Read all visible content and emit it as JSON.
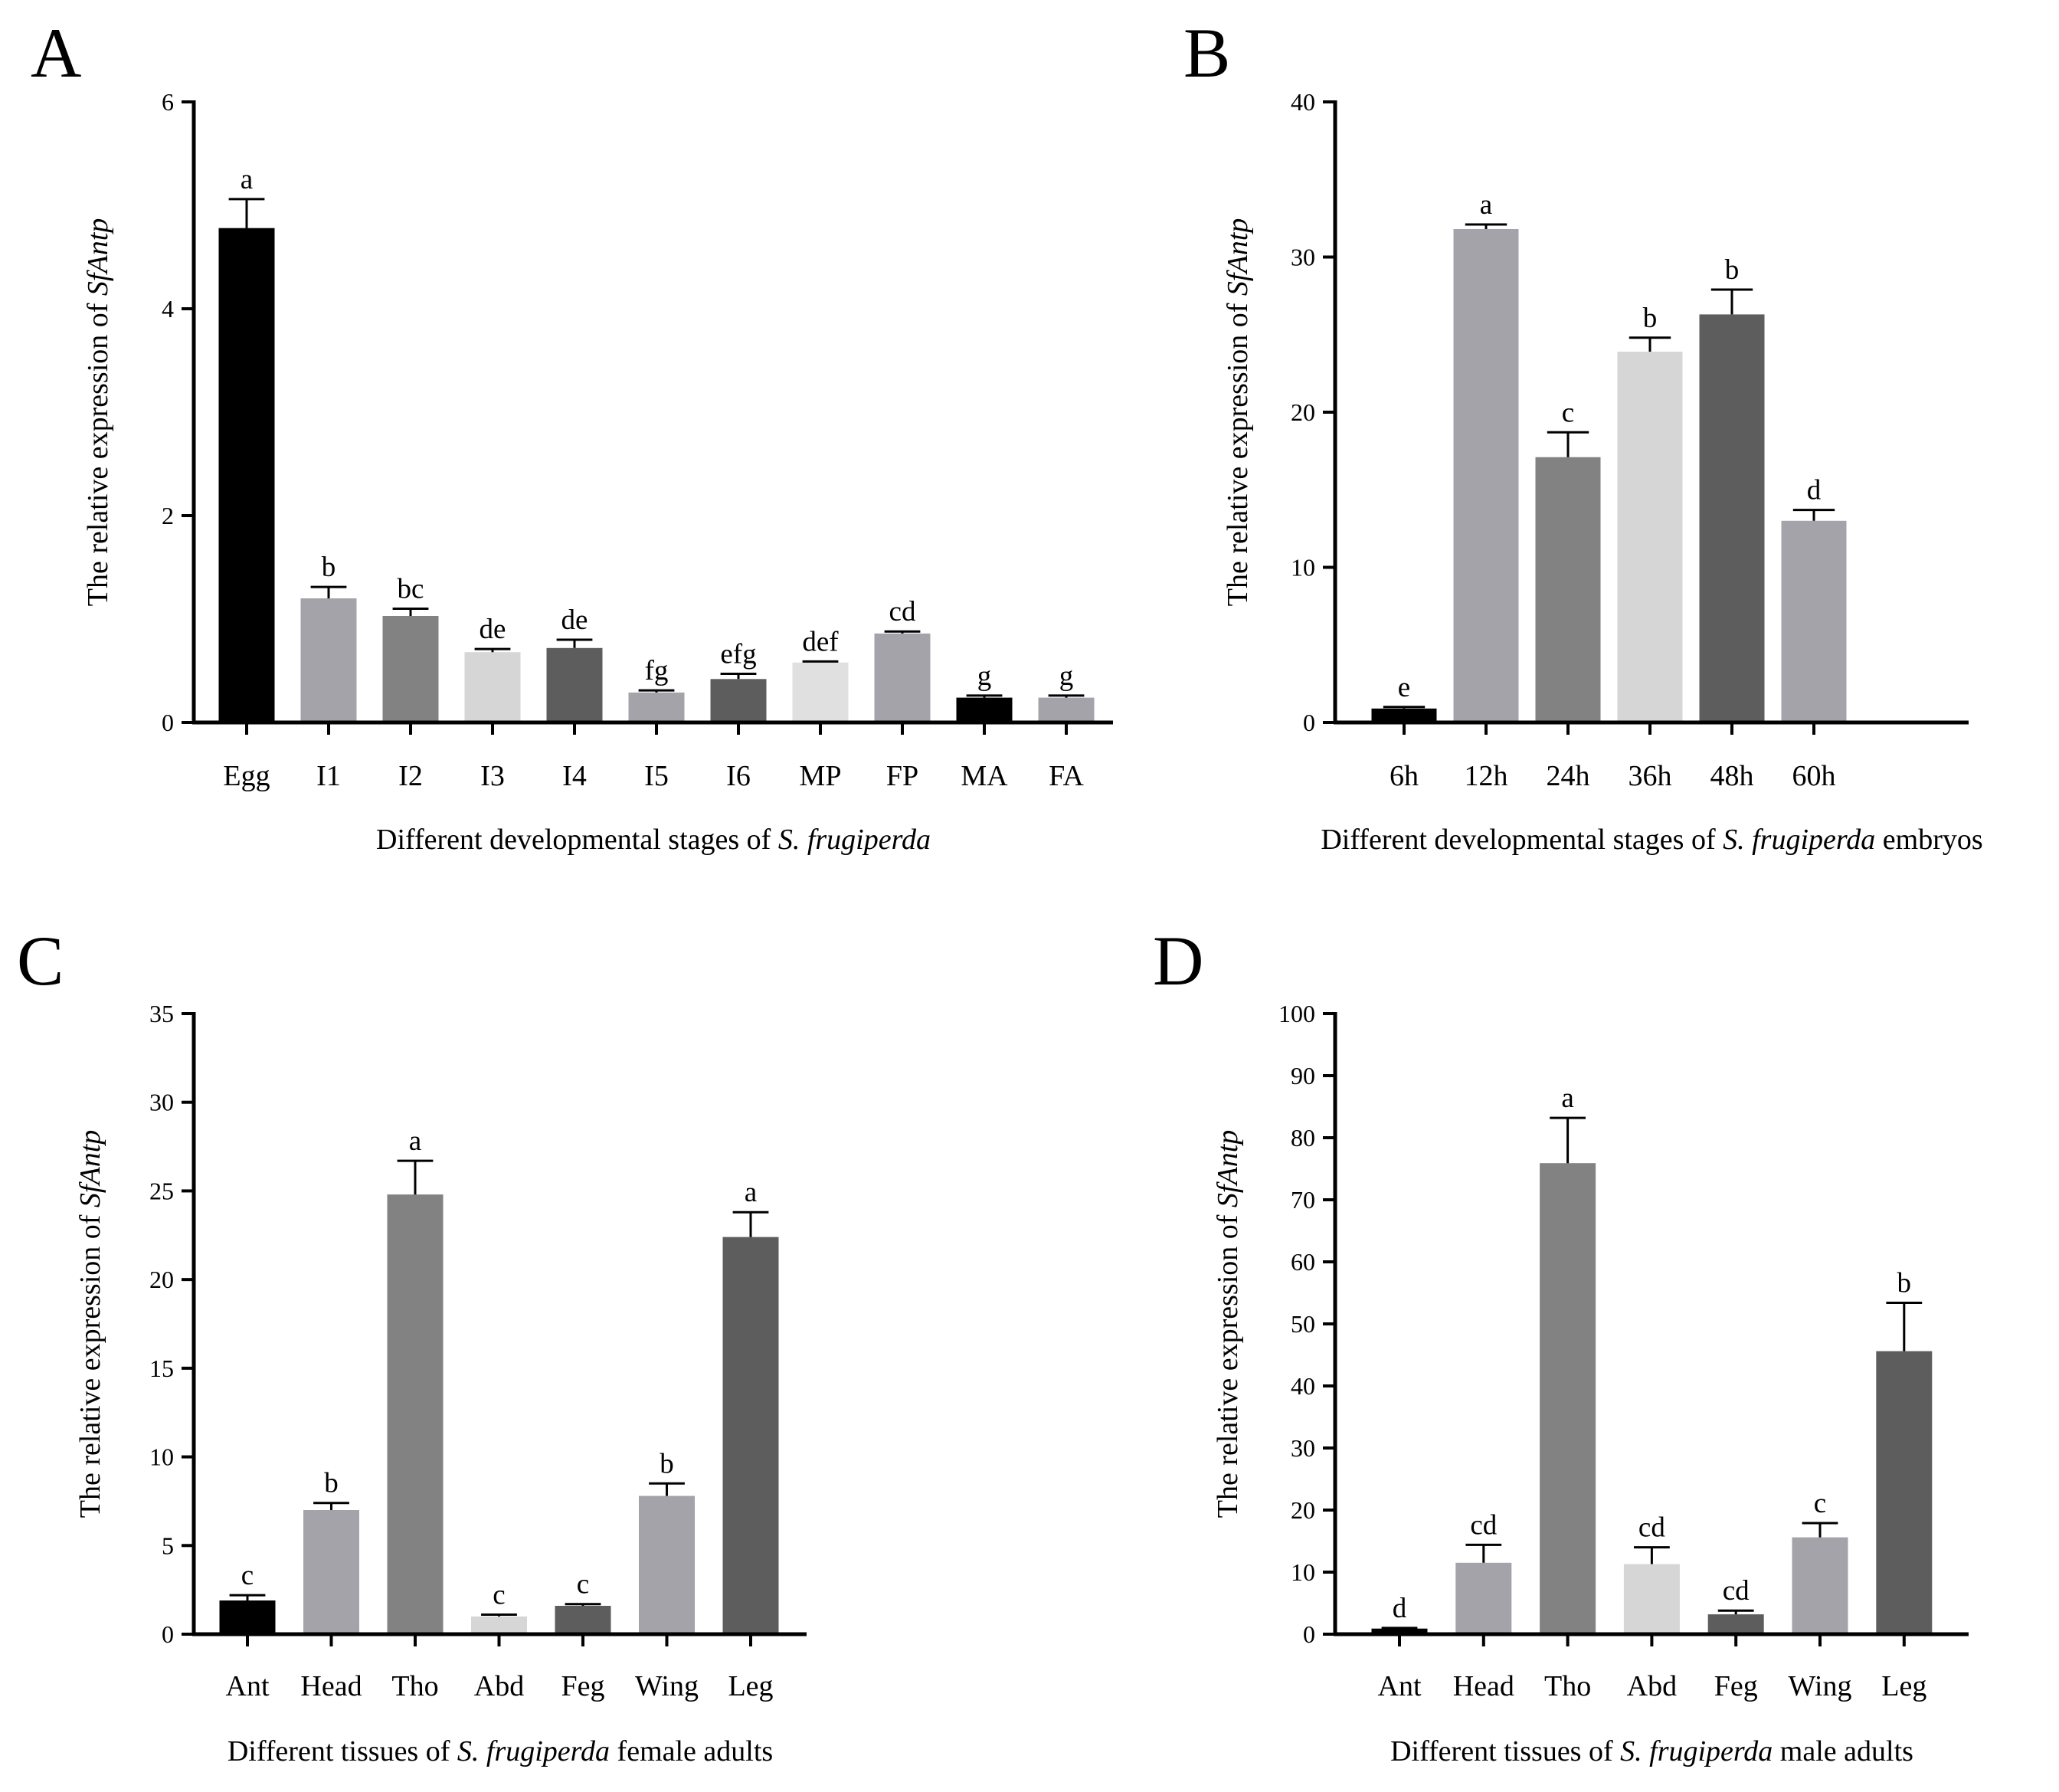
{
  "chart_data": [
    {
      "id": "A",
      "type": "bar",
      "panel_label": "A",
      "categories": [
        "Egg",
        "I1",
        "I2",
        "I3",
        "I4",
        "I5",
        "I6",
        "MP",
        "FP",
        "MA",
        "FA"
      ],
      "values": [
        4.78,
        1.2,
        1.03,
        0.68,
        0.72,
        0.29,
        0.42,
        0.58,
        0.86,
        0.24,
        0.24
      ],
      "errors": [
        0.28,
        0.11,
        0.07,
        0.03,
        0.08,
        0.02,
        0.05,
        0.01,
        0.02,
        0.02,
        0.02
      ],
      "significance": [
        "a",
        "b",
        "bc",
        "de",
        "de",
        "fg",
        "efg",
        "def",
        "cd",
        "g",
        "g"
      ],
      "colors": [
        "#000000",
        "#a4a3a9",
        "#828282",
        "#d6d6d6",
        "#5d5d5d",
        "#a4a3a9",
        "#5d5d5d",
        "#e0e0e0",
        "#a4a3a9",
        "#000000",
        "#a4a3a9"
      ],
      "ylim": [
        0,
        6
      ],
      "yticks": [
        0,
        2,
        4,
        6
      ],
      "ylabel": {
        "prefix": "The relative expression of ",
        "gene": "SfAntp"
      },
      "xlabel": {
        "prefix": "Different developmental stages of ",
        "species": "S. frugiperda",
        "suffix": ""
      }
    },
    {
      "id": "B",
      "type": "bar",
      "panel_label": "B",
      "categories": [
        "6h",
        "12h",
        "24h",
        "36h",
        "48h",
        "60h"
      ],
      "values": [
        0.9,
        31.8,
        17.1,
        23.9,
        26.3,
        13.0
      ],
      "errors": [
        0.1,
        0.3,
        1.6,
        0.9,
        1.6,
        0.7
      ],
      "significance": [
        "e",
        "a",
        "c",
        "b",
        "b",
        "d"
      ],
      "colors": [
        "#000000",
        "#a4a3a9",
        "#828282",
        "#d6d6d6",
        "#5d5d5d",
        "#a4a3a9"
      ],
      "ylim": [
        0,
        40
      ],
      "yticks": [
        0,
        10,
        20,
        30,
        40
      ],
      "ylabel": {
        "prefix": "The relative expression of ",
        "gene": "SfAntp"
      },
      "xlabel": {
        "prefix": "Different developmental stages of ",
        "species": "S. frugiperda",
        "suffix": " embryos"
      }
    },
    {
      "id": "C",
      "type": "bar",
      "panel_label": "C",
      "categories": [
        "Ant",
        "Head",
        "Tho",
        "Abd",
        "Feg",
        "Wing",
        "Leg"
      ],
      "values": [
        1.9,
        7.0,
        24.8,
        1.0,
        1.6,
        7.8,
        22.4
      ],
      "errors": [
        0.3,
        0.4,
        1.9,
        0.1,
        0.1,
        0.7,
        1.4
      ],
      "significance": [
        "c",
        "b",
        "a",
        "c",
        "c",
        "b",
        "a"
      ],
      "colors": [
        "#000000",
        "#a4a3a9",
        "#828282",
        "#d6d6d6",
        "#5d5d5d",
        "#a4a3a9",
        "#5d5d5d"
      ],
      "ylim": [
        0,
        35
      ],
      "yticks": [
        0,
        5,
        10,
        15,
        20,
        25,
        30,
        35
      ],
      "ylabel": {
        "prefix": "The relative expression of ",
        "gene": "SfAntp"
      },
      "xlabel": {
        "prefix": "Different tissues of ",
        "species": "S. frugiperda",
        "suffix": " female adults"
      }
    },
    {
      "id": "D",
      "type": "bar",
      "panel_label": "D",
      "categories": [
        "Ant",
        "Head",
        "Tho",
        "Abd",
        "Feg",
        "Wing",
        "Leg"
      ],
      "values": [
        0.9,
        11.5,
        75.9,
        11.3,
        3.2,
        15.6,
        45.6
      ],
      "errors": [
        0.1,
        2.9,
        7.3,
        2.7,
        0.6,
        2.3,
        7.8
      ],
      "significance": [
        "d",
        "cd",
        "a",
        "cd",
        "cd",
        "c",
        "b"
      ],
      "colors": [
        "#000000",
        "#a4a3a9",
        "#828282",
        "#d6d6d6",
        "#5d5d5d",
        "#a4a3a9",
        "#5d5d5d"
      ],
      "ylim": [
        0,
        100
      ],
      "yticks": [
        0,
        10,
        20,
        30,
        40,
        50,
        60,
        70,
        80,
        90,
        100
      ],
      "ylabel": {
        "prefix": "The relative expression of ",
        "gene": "SfAntp"
      },
      "xlabel": {
        "prefix": "Different tissues of ",
        "species": "S. frugiperda",
        "suffix": " male adults"
      }
    }
  ]
}
